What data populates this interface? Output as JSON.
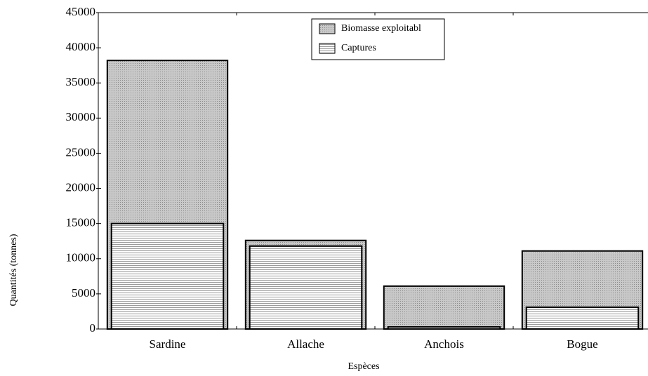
{
  "chart_data": {
    "type": "bar",
    "x_label": "Espèces",
    "y_label": "Quantités (tonnes)",
    "categories": [
      "Sardine",
      "Allache",
      "Anchois",
      "Bogue"
    ],
    "series": [
      {
        "name": "Biomasse exploitabl",
        "color": "#c8c8c8",
        "values": [
          38200,
          12600,
          6100,
          11100
        ]
      },
      {
        "name": "Captures",
        "color": "#ffffff",
        "values": [
          15000,
          11800,
          300,
          3100
        ]
      }
    ],
    "ylim": [
      0,
      45000
    ],
    "yticks": [
      0,
      5000,
      10000,
      15000,
      20000,
      25000,
      30000,
      35000,
      40000,
      45000
    ],
    "grid": false,
    "legend": "top"
  }
}
